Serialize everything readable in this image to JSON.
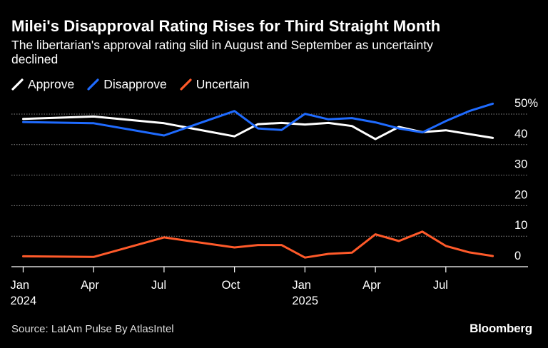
{
  "title": "Milei's Disapproval Rating Rises for Third Straight Month",
  "subtitle": "The libertarian's approval rating slid in August and September as uncertainty declined",
  "source": "Source: LatAm Pulse By AtlasIntel",
  "brand": "Bloomberg",
  "colors": {
    "background": "#000000",
    "approve": "#ffffff",
    "disapprove": "#1f6bff",
    "uncertain": "#ff5a2a",
    "grid": "#8a8a8a",
    "axis": "#ffffff"
  },
  "chart_data": {
    "type": "line",
    "x_unit": "month index from Jan 2024",
    "x_ticks": [
      {
        "x": 0,
        "month": "Jan",
        "year": "2024"
      },
      {
        "x": 3,
        "month": "Apr",
        "year": ""
      },
      {
        "x": 6,
        "month": "Jul",
        "year": ""
      },
      {
        "x": 9,
        "month": "Oct",
        "year": ""
      },
      {
        "x": 12,
        "month": "Jan",
        "year": "2025"
      },
      {
        "x": 15,
        "month": "Apr",
        "year": ""
      },
      {
        "x": 18,
        "month": "Jul",
        "year": ""
      }
    ],
    "xlim": [
      -0.5,
      21.5
    ],
    "ylim": [
      0,
      50
    ],
    "y_ticks": [
      {
        "value": 0,
        "label": "0"
      },
      {
        "value": 10,
        "label": "10"
      },
      {
        "value": 20,
        "label": "20"
      },
      {
        "value": 30,
        "label": "30"
      },
      {
        "value": 40,
        "label": "40"
      },
      {
        "value": 50,
        "label": "50%"
      }
    ],
    "grid": true,
    "legend": "top-left",
    "series": [
      {
        "name": "Approve",
        "color_key": "approve",
        "points": [
          [
            0,
            48.4
          ],
          [
            3,
            49.2
          ],
          [
            6,
            47.0
          ],
          [
            9,
            42.7
          ],
          [
            10,
            46.7
          ],
          [
            11,
            47.1
          ],
          [
            12,
            46.6
          ],
          [
            13,
            47.1
          ],
          [
            14,
            46.1
          ],
          [
            15,
            41.8
          ],
          [
            16,
            45.8
          ],
          [
            17,
            44.1
          ],
          [
            18,
            44.7
          ],
          [
            20,
            42.2
          ]
        ]
      },
      {
        "name": "Disapprove",
        "color_key": "disapprove",
        "points": [
          [
            0,
            47.4
          ],
          [
            3,
            47.0
          ],
          [
            6,
            43.0
          ],
          [
            9,
            51.0
          ],
          [
            10,
            45.3
          ],
          [
            11,
            44.8
          ],
          [
            12,
            50.1
          ],
          [
            13,
            48.3
          ],
          [
            14,
            48.7
          ],
          [
            15,
            47.3
          ],
          [
            16,
            45.3
          ],
          [
            17,
            44.0
          ],
          [
            18,
            47.7
          ],
          [
            19,
            51.0
          ],
          [
            20,
            53.4
          ]
        ]
      },
      {
        "name": "Uncertain",
        "color_key": "uncertain",
        "points": [
          [
            0,
            3.4
          ],
          [
            3,
            3.2
          ],
          [
            6,
            9.6
          ],
          [
            9,
            6.3
          ],
          [
            10,
            7.1
          ],
          [
            11,
            7.1
          ],
          [
            12,
            3.0
          ],
          [
            13,
            4.2
          ],
          [
            14,
            4.6
          ],
          [
            15,
            10.6
          ],
          [
            16,
            8.4
          ],
          [
            17,
            11.5
          ],
          [
            18,
            6.8
          ],
          [
            19,
            4.7
          ],
          [
            20,
            3.5
          ]
        ]
      }
    ]
  }
}
